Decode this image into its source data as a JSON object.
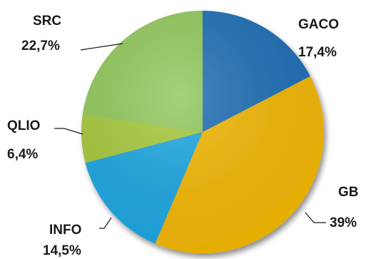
{
  "chart_data": {
    "type": "pie",
    "start_angle_deg": 0,
    "direction": "clockwise",
    "slices": [
      {
        "name": "GACO",
        "value": 17.4,
        "value_label": "17,4%",
        "color": "#1f6fb5"
      },
      {
        "name": "GB",
        "value": 39.0,
        "value_label": "39%",
        "color": "#f2b705"
      },
      {
        "name": "INFO",
        "value": 14.5,
        "value_label": "14,5%",
        "color": "#1ea7e1"
      },
      {
        "name": "QLIO",
        "value": 6.4,
        "value_label": "6,4%",
        "color": "#a7c93c"
      },
      {
        "name": "SRC",
        "value": 22.7,
        "value_label": "22,7%",
        "color": "#92c85c"
      }
    ]
  }
}
